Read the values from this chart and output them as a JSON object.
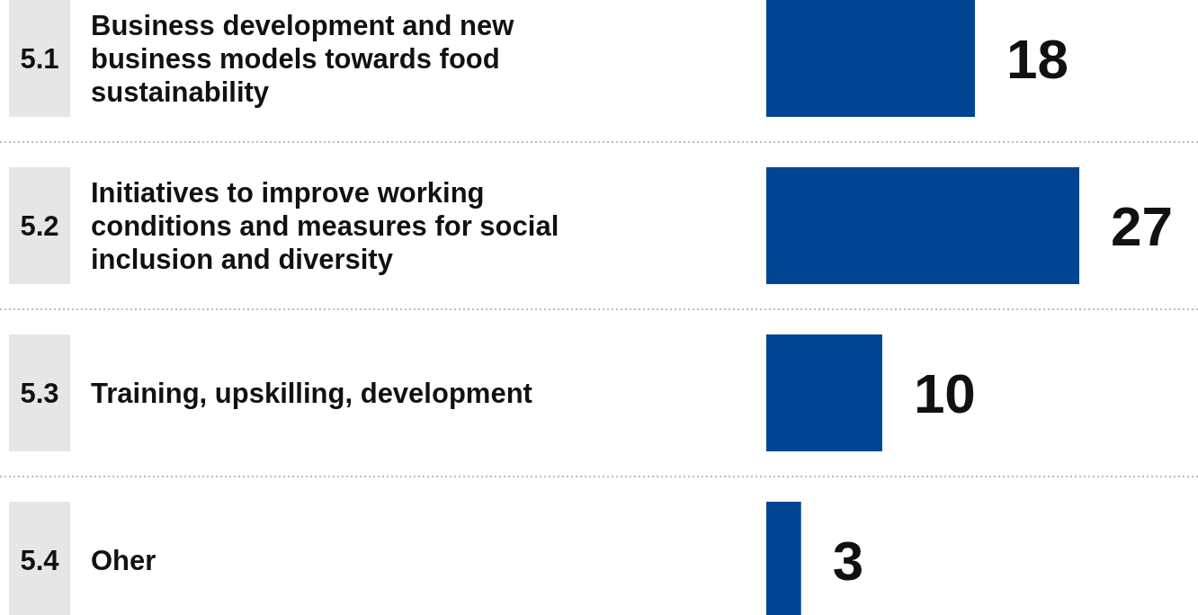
{
  "chart_data": {
    "type": "bar",
    "orientation": "horizontal",
    "data_labels": true,
    "color": "#004494",
    "categories": [
      "5.1 Business development and new business models towards food sustainability",
      "5.2 Initiatives to improve working conditions and measures for social inclusion and diversity",
      "5.3 Training, upskilling, development",
      "5.4 Oher"
    ],
    "values": [
      18,
      27,
      10,
      3
    ]
  }
}
